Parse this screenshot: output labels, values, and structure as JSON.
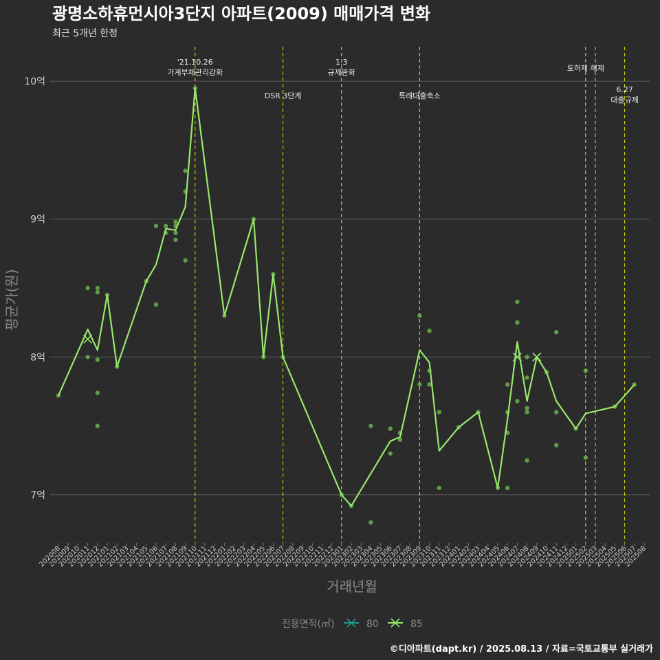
{
  "title": "광명소하휴먼시아3단지 아파트(2009) 매매가격 변화",
  "subtitle": "최근 5개년 한정",
  "caption": "©디아파트(dapt.kr) / 2025.08.13 / 자료=국토교통부 실거래가",
  "colors": {
    "background": "#2b2b2b",
    "grid": "#5a5a5a",
    "line85": "#98e86c",
    "line80": "#1f9e89",
    "point": "#6ab04c",
    "event": "#e6e600"
  },
  "chart_data": {
    "type": "line",
    "xlabel": "거래년월",
    "ylabel": "평균가(원)",
    "ylim": [
      6.65,
      10.25
    ],
    "grid": true,
    "legend_position": "bottom",
    "legend_title": "전용면적(㎡)",
    "y_ticks": [
      {
        "v": 7,
        "label": "7억"
      },
      {
        "v": 8,
        "label": "8억"
      },
      {
        "v": 9,
        "label": "9억"
      },
      {
        "v": 10,
        "label": "10억"
      }
    ],
    "categories": [
      "202008",
      "202009",
      "202010",
      "202011",
      "202012",
      "202101",
      "202102",
      "202103",
      "202104",
      "202105",
      "202106",
      "202107",
      "202108",
      "202109",
      "202110",
      "202111",
      "202112",
      "202201",
      "202202",
      "202203",
      "202204",
      "202205",
      "202206",
      "202207",
      "202208",
      "202209",
      "202210",
      "202211",
      "202212",
      "202301",
      "202302",
      "202303",
      "202304",
      "202305",
      "202306",
      "202307",
      "202308",
      "202309",
      "202310",
      "202311",
      "202312",
      "202401",
      "202402",
      "202403",
      "202404",
      "202405",
      "202406",
      "202407",
      "202408",
      "202409",
      "202410",
      "202411",
      "202412",
      "202501",
      "202502",
      "202503",
      "202504",
      "202505",
      "202506",
      "202507",
      "202508"
    ],
    "series": [
      {
        "name": "80",
        "points": [
          {
            "x": "202011",
            "y": 8.13
          },
          {
            "x": "202407",
            "y": 8.0
          },
          {
            "x": "202409",
            "y": 8.0
          }
        ]
      },
      {
        "name": "85",
        "points": [
          {
            "x": "202008",
            "y": 7.72
          },
          {
            "x": "202011",
            "y": 8.2
          },
          {
            "x": "202012",
            "y": 8.05
          },
          {
            "x": "202101",
            "y": 8.45
          },
          {
            "x": "202102",
            "y": 7.93
          },
          {
            "x": "202105",
            "y": 8.55
          },
          {
            "x": "202106",
            "y": 8.67
          },
          {
            "x": "202107",
            "y": 8.93
          },
          {
            "x": "202108",
            "y": 8.92
          },
          {
            "x": "202109",
            "y": 9.09
          },
          {
            "x": "202110",
            "y": 9.95
          },
          {
            "x": "202201",
            "y": 8.3
          },
          {
            "x": "202204",
            "y": 9.0
          },
          {
            "x": "202205",
            "y": 8.0
          },
          {
            "x": "202206",
            "y": 8.6
          },
          {
            "x": "202207",
            "y": 8.0
          },
          {
            "x": "202301",
            "y": 7.0
          },
          {
            "x": "202302",
            "y": 6.92
          },
          {
            "x": "202306",
            "y": 7.39
          },
          {
            "x": "202307",
            "y": 7.42
          },
          {
            "x": "202309",
            "y": 8.05
          },
          {
            "x": "202310",
            "y": 7.96
          },
          {
            "x": "202311",
            "y": 7.32
          },
          {
            "x": "202401",
            "y": 7.49
          },
          {
            "x": "202403",
            "y": 7.6
          },
          {
            "x": "202405",
            "y": 7.05
          },
          {
            "x": "202406",
            "y": 7.55
          },
          {
            "x": "202407",
            "y": 8.11
          },
          {
            "x": "202408",
            "y": 7.68
          },
          {
            "x": "202409",
            "y": 8.0
          },
          {
            "x": "202410",
            "y": 7.89
          },
          {
            "x": "202411",
            "y": 7.68
          },
          {
            "x": "202501",
            "y": 7.48
          },
          {
            "x": "202502",
            "y": 7.59
          },
          {
            "x": "202505",
            "y": 7.64
          },
          {
            "x": "202507",
            "y": 7.8
          }
        ]
      }
    ],
    "scatter": [
      {
        "x": "202008",
        "y": 7.72
      },
      {
        "x": "202011",
        "y": 8.5
      },
      {
        "x": "202011",
        "y": 8.0
      },
      {
        "x": "202012",
        "y": 8.5
      },
      {
        "x": "202012",
        "y": 8.47
      },
      {
        "x": "202012",
        "y": 7.98
      },
      {
        "x": "202012",
        "y": 7.74
      },
      {
        "x": "202012",
        "y": 7.5
      },
      {
        "x": "202101",
        "y": 8.45
      },
      {
        "x": "202102",
        "y": 7.93
      },
      {
        "x": "202105",
        "y": 8.55
      },
      {
        "x": "202106",
        "y": 8.95
      },
      {
        "x": "202106",
        "y": 8.38
      },
      {
        "x": "202107",
        "y": 8.95
      },
      {
        "x": "202107",
        "y": 8.9
      },
      {
        "x": "202108",
        "y": 8.98
      },
      {
        "x": "202108",
        "y": 8.95
      },
      {
        "x": "202108",
        "y": 8.9
      },
      {
        "x": "202108",
        "y": 8.85
      },
      {
        "x": "202109",
        "y": 9.35
      },
      {
        "x": "202109",
        "y": 9.2
      },
      {
        "x": "202109",
        "y": 8.7
      },
      {
        "x": "202110",
        "y": 9.95
      },
      {
        "x": "202201",
        "y": 8.3
      },
      {
        "x": "202204",
        "y": 9.0
      },
      {
        "x": "202205",
        "y": 8.0
      },
      {
        "x": "202206",
        "y": 8.6
      },
      {
        "x": "202207",
        "y": 8.0
      },
      {
        "x": "202301",
        "y": 7.0
      },
      {
        "x": "202302",
        "y": 6.92
      },
      {
        "x": "202304",
        "y": 7.5
      },
      {
        "x": "202304",
        "y": 6.8
      },
      {
        "x": "202306",
        "y": 7.48
      },
      {
        "x": "202306",
        "y": 7.3
      },
      {
        "x": "202307",
        "y": 7.45
      },
      {
        "x": "202307",
        "y": 7.4
      },
      {
        "x": "202309",
        "y": 8.3
      },
      {
        "x": "202309",
        "y": 7.8
      },
      {
        "x": "202310",
        "y": 8.19
      },
      {
        "x": "202310",
        "y": 7.9
      },
      {
        "x": "202310",
        "y": 7.8
      },
      {
        "x": "202311",
        "y": 7.6
      },
      {
        "x": "202311",
        "y": 7.05
      },
      {
        "x": "202401",
        "y": 7.49
      },
      {
        "x": "202403",
        "y": 7.6
      },
      {
        "x": "202405",
        "y": 7.05
      },
      {
        "x": "202406",
        "y": 7.8
      },
      {
        "x": "202406",
        "y": 7.6
      },
      {
        "x": "202406",
        "y": 7.45
      },
      {
        "x": "202406",
        "y": 7.05
      },
      {
        "x": "202407",
        "y": 8.4
      },
      {
        "x": "202407",
        "y": 8.25
      },
      {
        "x": "202407",
        "y": 7.68
      },
      {
        "x": "202408",
        "y": 8.0
      },
      {
        "x": "202408",
        "y": 7.85
      },
      {
        "x": "202408",
        "y": 7.63
      },
      {
        "x": "202408",
        "y": 7.6
      },
      {
        "x": "202408",
        "y": 7.25
      },
      {
        "x": "202410",
        "y": 7.89
      },
      {
        "x": "202411",
        "y": 8.18
      },
      {
        "x": "202411",
        "y": 7.6
      },
      {
        "x": "202411",
        "y": 7.36
      },
      {
        "x": "202501",
        "y": 7.48
      },
      {
        "x": "202502",
        "y": 7.9
      },
      {
        "x": "202502",
        "y": 7.27
      },
      {
        "x": "202505",
        "y": 7.64
      },
      {
        "x": "202507",
        "y": 7.8
      }
    ],
    "events": [
      {
        "x": "202110",
        "lines": [
          "'21.10.26",
          "가계부채관리강화"
        ],
        "row": "top"
      },
      {
        "x": "202207",
        "lines": [
          "DSR 3단계"
        ],
        "row": "mid"
      },
      {
        "x": "202301",
        "lines": [
          "1.3",
          "규제완화"
        ],
        "row": "top"
      },
      {
        "x": "202309",
        "lines": [
          "특례대출축소"
        ],
        "row": "mid"
      },
      {
        "x": "202502",
        "lines": [
          "토허제 해제"
        ],
        "row": "high"
      },
      {
        "x": "202503",
        "lines": [],
        "row": "none"
      },
      {
        "x": "202506",
        "lines": [
          "6.27",
          "대출규제"
        ],
        "row": "low"
      }
    ]
  }
}
